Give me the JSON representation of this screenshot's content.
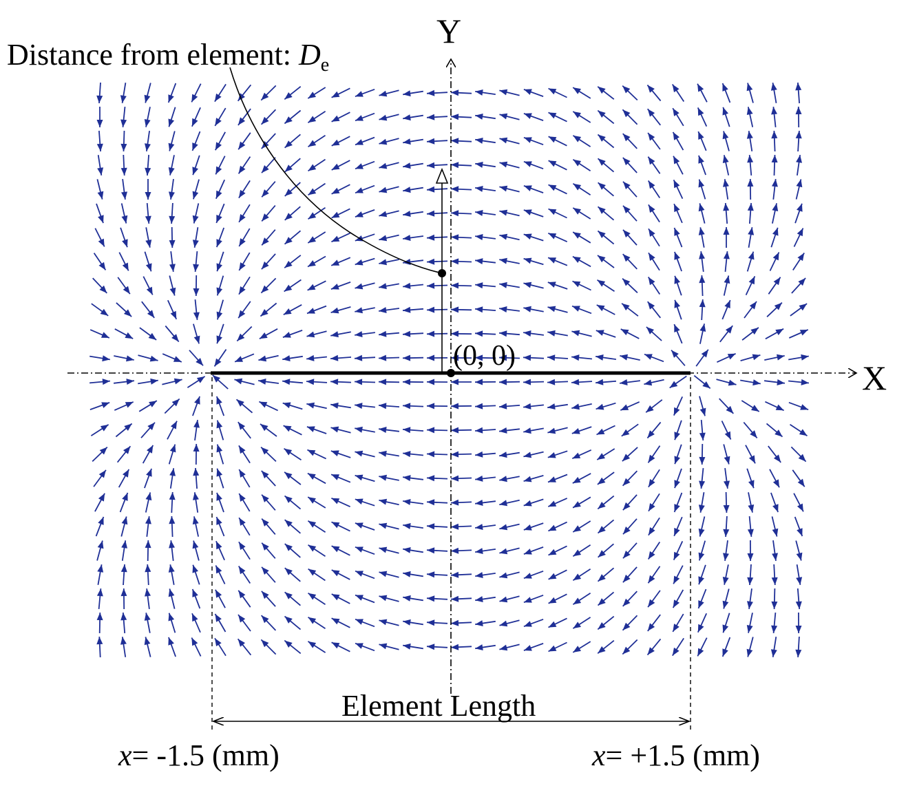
{
  "labels": {
    "y_axis": "Y",
    "x_axis": "X",
    "distance_prefix": "Distance from element: ",
    "distance_symbol": "D",
    "distance_subscript": "e",
    "origin": "(0, 0)",
    "element_length": "Element Length",
    "left_var": "x",
    "left_value": "= -1.5 (mm)",
    "right_var": "x",
    "right_value": "= +1.5 (mm)"
  },
  "diagram": {
    "element_start_mm": -1.5,
    "element_end_mm": 1.5,
    "field_color": "#1f2f96",
    "line_color": "#000000"
  }
}
